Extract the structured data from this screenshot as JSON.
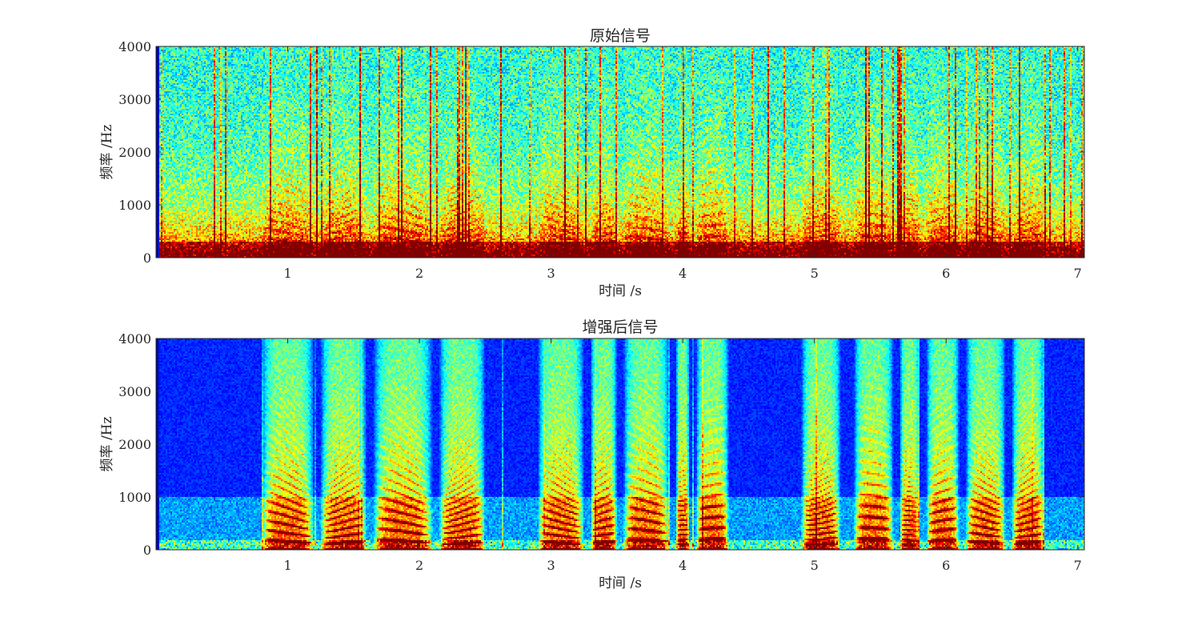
{
  "chart_data": [
    {
      "type": "heatmap",
      "title": "原始信号",
      "xlabel": "时间 /s",
      "ylabel": "频率 /Hz",
      "xlim": [
        0,
        7.05
      ],
      "ylim": [
        0,
        4000
      ],
      "xticks": [
        1,
        2,
        3,
        4,
        5,
        6,
        7
      ],
      "yticks": [
        0,
        1000,
        2000,
        3000,
        4000
      ],
      "colormap": "jet",
      "colors": [
        "#00008f",
        "#0000ff",
        "#0080ff",
        "#00ffff",
        "#80ff80",
        "#ffff00",
        "#ff8000",
        "#ff0000",
        "#800000"
      ],
      "grid": false,
      "legend": "none",
      "description_of_intensity": "energy concentrated below ~1000 Hz throughout; broadband noise across all frequencies for the full duration",
      "voiced_segments_s": [
        [
          0.8,
          1.2
        ],
        [
          1.25,
          1.6
        ],
        [
          1.65,
          2.1
        ],
        [
          2.15,
          2.5
        ],
        [
          2.9,
          3.25
        ],
        [
          3.3,
          3.5
        ],
        [
          3.55,
          3.9
        ],
        [
          3.95,
          4.05
        ],
        [
          4.1,
          4.35
        ],
        [
          4.9,
          5.2
        ],
        [
          5.3,
          5.6
        ],
        [
          5.65,
          5.8
        ],
        [
          5.85,
          6.1
        ],
        [
          6.15,
          6.45
        ],
        [
          6.5,
          6.75
        ]
      ],
      "noise_level": 0.45
    },
    {
      "type": "heatmap",
      "title": "增强后信号",
      "xlabel": "时间 /s",
      "ylabel": "频率 /Hz",
      "xlim": [
        0,
        7.05
      ],
      "ylim": [
        0,
        4000
      ],
      "xticks": [
        1,
        2,
        3,
        4,
        5,
        6,
        7
      ],
      "yticks": [
        0,
        1000,
        2000,
        3000,
        4000
      ],
      "colormap": "jet",
      "colors": [
        "#00008f",
        "#0000ff",
        "#0080ff",
        "#00ffff",
        "#80ff80",
        "#ffff00",
        "#ff8000",
        "#ff0000",
        "#800000"
      ],
      "grid": false,
      "legend": "none",
      "description_of_intensity": "noise suppressed; harmonic speech structure visible during voiced segments, low energy (blue) in silent segments",
      "voiced_segments_s": [
        [
          0.8,
          1.2
        ],
        [
          1.25,
          1.6
        ],
        [
          1.65,
          2.1
        ],
        [
          2.15,
          2.5
        ],
        [
          2.9,
          3.25
        ],
        [
          3.3,
          3.5
        ],
        [
          3.55,
          3.9
        ],
        [
          3.95,
          4.05
        ],
        [
          4.1,
          4.35
        ],
        [
          4.9,
          5.2
        ],
        [
          5.3,
          5.6
        ],
        [
          5.65,
          5.8
        ],
        [
          5.85,
          6.1
        ],
        [
          6.15,
          6.45
        ],
        [
          6.5,
          6.75
        ]
      ],
      "noise_level": 0.08
    }
  ]
}
